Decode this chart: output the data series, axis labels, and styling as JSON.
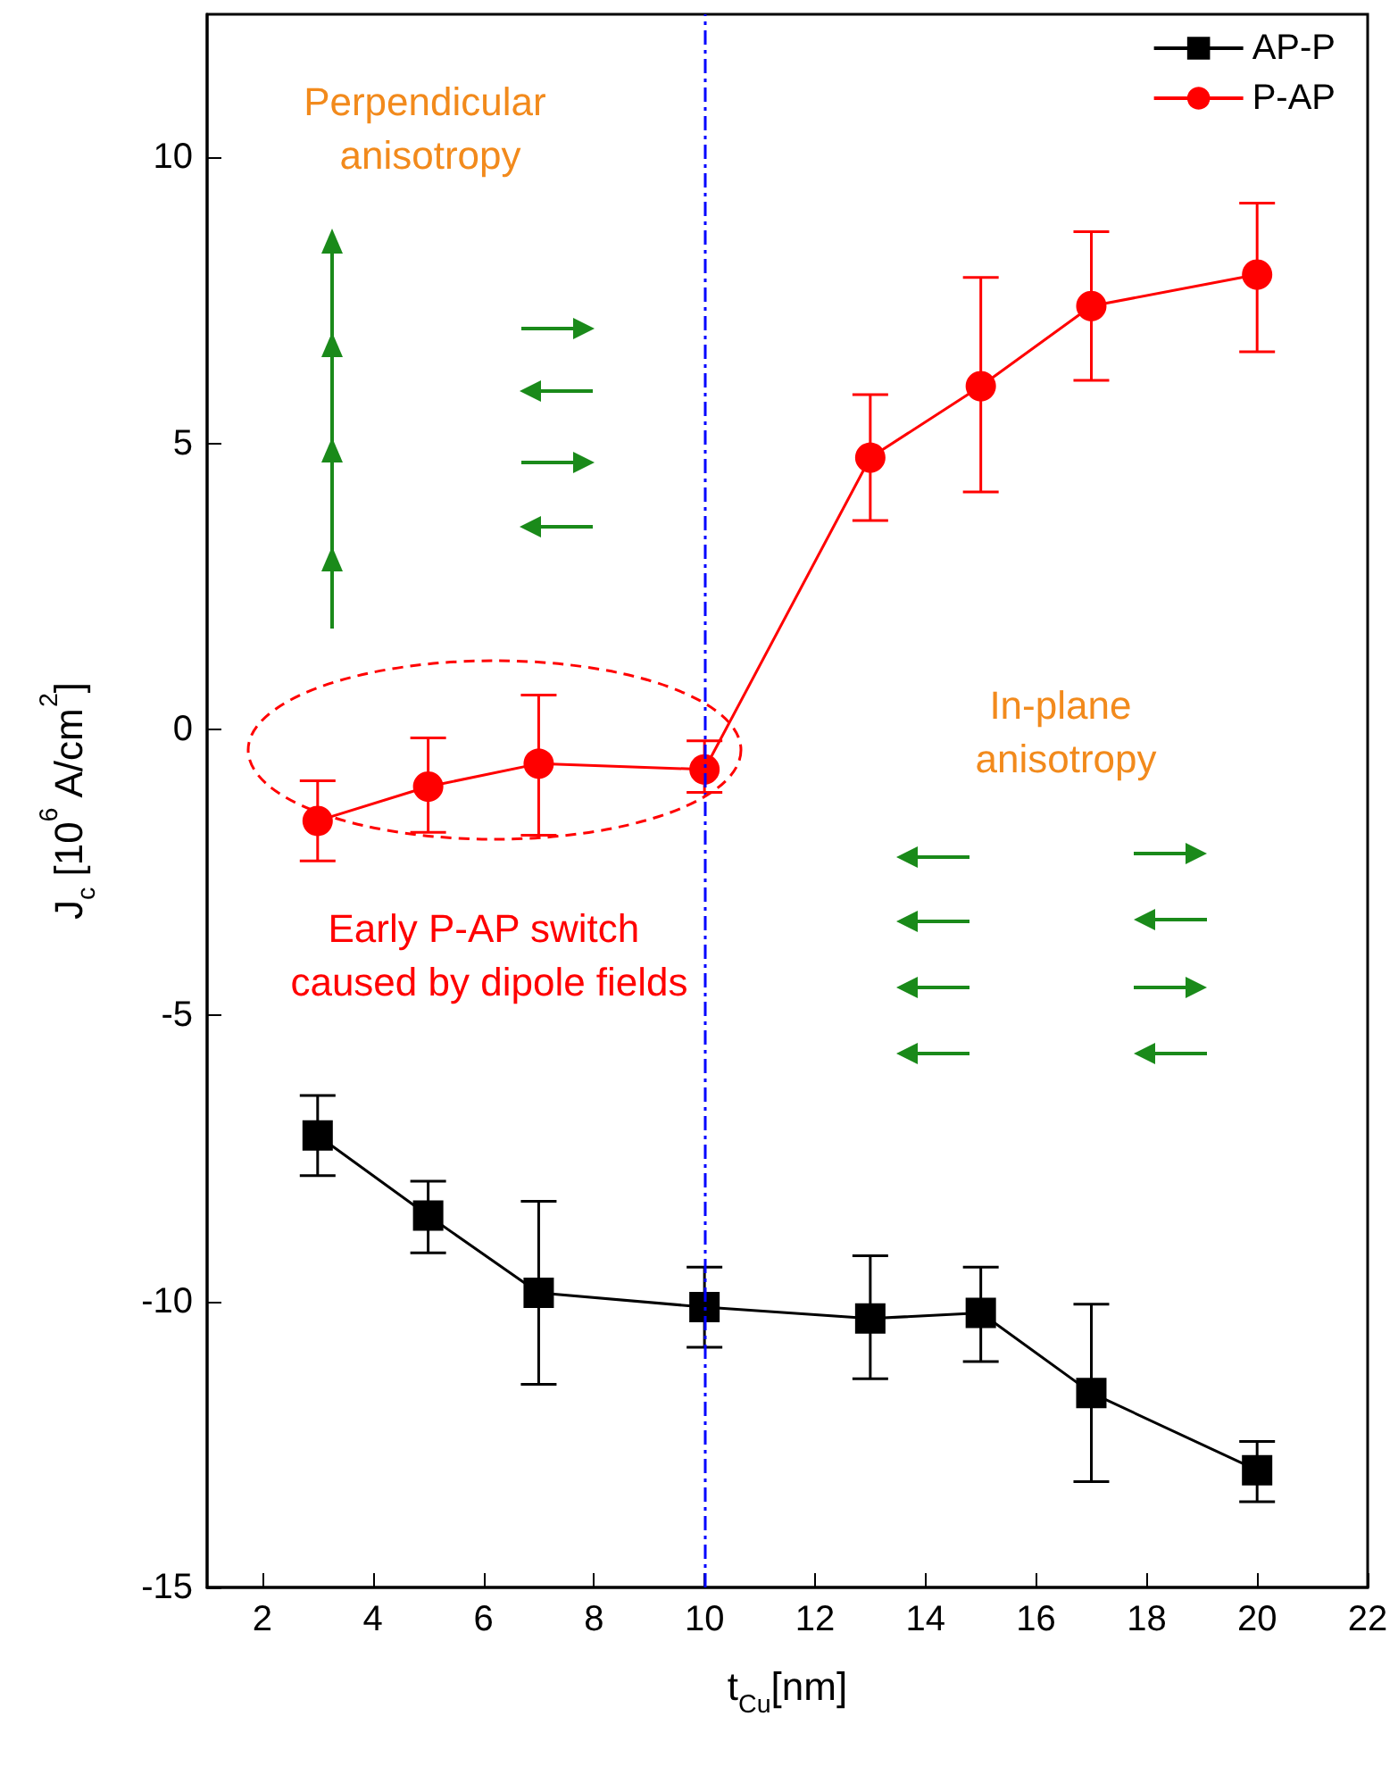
{
  "chart_data": {
    "type": "line",
    "xlabel": "t$_{Cu}$[nm]",
    "ylabel": "J$_{c}$ [10$^{6}$ A/cm$^{2}$]",
    "x": [
      3,
      5,
      7,
      10,
      13,
      15,
      17,
      20
    ],
    "series": [
      {
        "name": "AP-P",
        "color": "#000000",
        "marker": "square",
        "values": [
          -7.1,
          -8.5,
          -9.85,
          -10.1,
          -10.3,
          -10.2,
          -11.6,
          -12.95
        ],
        "errors": [
          [
            -7.8,
            -6.4
          ],
          [
            -9.15,
            -7.9
          ],
          [
            -11.45,
            -8.25
          ],
          [
            -10.8,
            -9.4
          ],
          [
            -11.35,
            -9.2
          ],
          [
            -11.05,
            -9.4
          ],
          [
            -13.15,
            -10.05
          ],
          [
            -13.5,
            -12.45
          ]
        ]
      },
      {
        "name": "P-AP",
        "color": "#ff0000",
        "marker": "circle",
        "values": [
          -1.6,
          -1.0,
          -0.6,
          -0.7,
          4.75,
          6.0,
          7.4,
          7.95
        ],
        "errors": [
          [
            -2.3,
            -0.9
          ],
          [
            -1.8,
            -0.15
          ],
          [
            -1.85,
            0.6
          ],
          [
            -1.1,
            -0.2
          ],
          [
            3.65,
            5.85
          ],
          [
            4.15,
            7.9
          ],
          [
            6.1,
            8.7
          ],
          [
            6.6,
            9.2
          ]
        ]
      }
    ],
    "xlim": [
      1,
      22
    ],
    "xticks": [
      2,
      4,
      6,
      8,
      10,
      12,
      14,
      16,
      18,
      20,
      22
    ],
    "ylim": [
      -15,
      12.5
    ],
    "yticks": [
      -15,
      -10,
      -5,
      0,
      5,
      10
    ],
    "ref_lines": [
      {
        "axis": "x",
        "value": 10,
        "color": "#0000ff",
        "line_style": "dashdot"
      }
    ],
    "annotations": [
      "Perpendicular anisotropy",
      "In-plane anisotropy",
      "Early P-AP switch caused by dipole fields"
    ],
    "legend": "top right",
    "grid": false,
    "line_style": "solid"
  }
}
